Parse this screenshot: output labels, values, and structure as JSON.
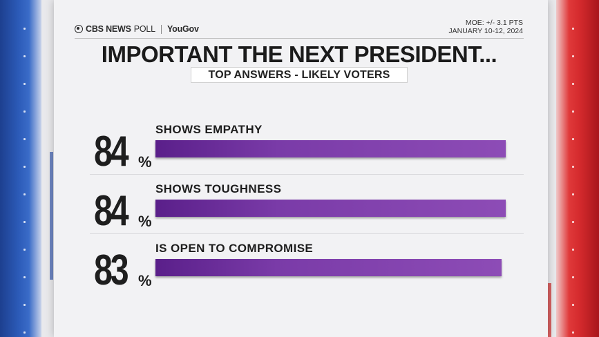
{
  "brand": {
    "network": "CBS NEWS",
    "poll": "POLL",
    "partner": "YouGov",
    "moe": "MOE: +/- 3.1 PTS",
    "dates": "JANUARY 10-12, 2024"
  },
  "colors": {
    "bar": "#7a3ba8",
    "left_side": "#2c5bb8",
    "right_side": "#d42a2d"
  },
  "chart_data": {
    "type": "bar",
    "orientation": "horizontal",
    "title": "IMPORTANT THE NEXT PRESIDENT...",
    "subtitle": "TOP ANSWERS - LIKELY VOTERS",
    "categories": [
      "SHOWS EMPATHY",
      "SHOWS TOUGHNESS",
      "IS OPEN TO COMPROMISE"
    ],
    "values": [
      84,
      84,
      83
    ],
    "value_suffix": "%",
    "xlim": [
      0,
      84
    ]
  }
}
